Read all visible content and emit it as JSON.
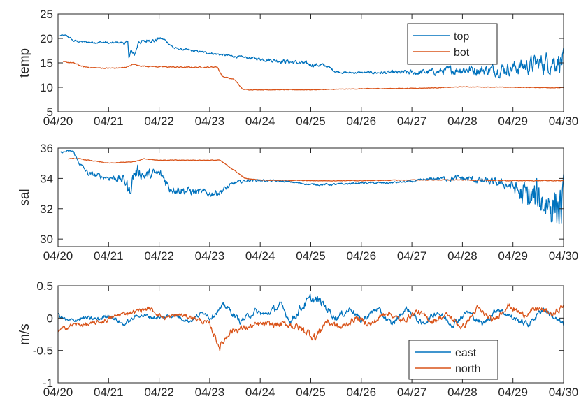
{
  "chart_data": [
    {
      "type": "line",
      "ylabel": "temp",
      "ylim": [
        5,
        25
      ],
      "yticks": [
        5,
        10,
        15,
        20,
        25
      ],
      "xlim": [
        "04/20",
        "04/30"
      ],
      "xticks": [
        "04/20",
        "04/21",
        "04/22",
        "04/23",
        "04/24",
        "04/25",
        "04/26",
        "04/27",
        "04/28",
        "04/29",
        "04/30"
      ],
      "legend_position": "top-right",
      "series": [
        {
          "name": "top",
          "color": "#0072BD",
          "x": [
            "04/20",
            "04/20",
            "04/21",
            "04/21",
            "04/22",
            "04/22",
            "04/23",
            "04/23",
            "04/24",
            "04/24",
            "04/25",
            "04/25",
            "04/26",
            "04/26",
            "04/27",
            "04/27",
            "04/28",
            "04/28",
            "04/29",
            "04/29",
            "04/30"
          ],
          "y": [
            20.6,
            20.3,
            19.2,
            19.3,
            19.5,
            17.8,
            17.0,
            16.4,
            16.0,
            15.3,
            14.5,
            13.2,
            13.0,
            13.0,
            13.2,
            13.8,
            13.5,
            14.0,
            14.5,
            15.5,
            15.5
          ],
          "x_detail": [
            0.04,
            0.17,
            0.25,
            0.3,
            0.5,
            0.75,
            0.95,
            1.0,
            1.2,
            1.38,
            1.4,
            1.44,
            1.5,
            1.55,
            1.6,
            1.7,
            1.8,
            1.9,
            2.0,
            2.1,
            2.3,
            2.5,
            3.0,
            3.5,
            3.7,
            4.0,
            4.5,
            5.0,
            5.3,
            5.5,
            5.7,
            6.0,
            6.5,
            7.0,
            7.5,
            8.0,
            8.5,
            9.0,
            9.5,
            9.8,
            10.0
          ],
          "y_detail": [
            20.6,
            20.5,
            20.0,
            19.5,
            19.3,
            19.2,
            19.2,
            19.0,
            19.2,
            19.0,
            16.5,
            17.5,
            16.3,
            17.8,
            19.5,
            19.2,
            19.8,
            19.5,
            20.0,
            19.8,
            18.0,
            17.7,
            17.0,
            16.3,
            16.1,
            15.8,
            15.3,
            14.7,
            14.4,
            13.2,
            13.0,
            13.0,
            13.0,
            13.0,
            13.2,
            13.7,
            13.5,
            14.0,
            14.8,
            15.5,
            15.5
          ],
          "noise": [
            0.2,
            0.2,
            0.2,
            0.2,
            0.2,
            0.2,
            0.2,
            0.2,
            0.2,
            0.4,
            0.6,
            0.6,
            0.6,
            0.6,
            0.5,
            0.4,
            0.4,
            0.4,
            0.3,
            0.2,
            0.2,
            0.2,
            0.2,
            0.2,
            0.2,
            0.3,
            0.4,
            0.4,
            0.3,
            0.2,
            0.2,
            0.2,
            0.3,
            0.5,
            0.6,
            0.9,
            1.0,
            1.3,
            1.8,
            2.2,
            2.0
          ]
        },
        {
          "name": "bot",
          "color": "#D95319",
          "x_detail": [
            0.1,
            0.3,
            0.5,
            0.7,
            1.0,
            1.3,
            1.5,
            1.6,
            2.0,
            2.5,
            3.0,
            3.15,
            3.25,
            3.35,
            3.5,
            3.65,
            3.8,
            4.0,
            5.0,
            6.0,
            7.0,
            7.5,
            8.0,
            9.0,
            10.0
          ],
          "y_detail": [
            15.2,
            15.0,
            14.2,
            14.0,
            13.9,
            14.0,
            14.7,
            14.4,
            14.2,
            14.1,
            14.1,
            14.2,
            12.2,
            12.0,
            11.5,
            9.6,
            9.5,
            9.5,
            9.5,
            9.7,
            9.8,
            9.9,
            10.1,
            10.0,
            9.9
          ],
          "noise": [
            0.1,
            0.1,
            0.1,
            0.1,
            0.1,
            0.1,
            0.1,
            0.1,
            0.1,
            0.1,
            0.1,
            0.1,
            0.1,
            0.1,
            0.1,
            0.05,
            0.05,
            0.05,
            0.05,
            0.05,
            0.05,
            0.05,
            0.05,
            0.05,
            0.05
          ]
        }
      ]
    },
    {
      "type": "line",
      "ylabel": "sal",
      "ylim": [
        29.5,
        36
      ],
      "yticks": [
        30,
        32,
        34,
        36
      ],
      "xlim": [
        "04/20",
        "04/30"
      ],
      "xticks": [
        "04/20",
        "04/21",
        "04/22",
        "04/23",
        "04/24",
        "04/25",
        "04/26",
        "04/27",
        "04/28",
        "04/29",
        "04/30"
      ],
      "series": [
        {
          "name": "top",
          "color": "#0072BD",
          "x_detail": [
            0.05,
            0.2,
            0.3,
            0.4,
            0.6,
            0.9,
            1.2,
            1.35,
            1.4,
            1.5,
            1.6,
            1.7,
            2.0,
            2.1,
            2.2,
            2.5,
            3.0,
            3.2,
            3.5,
            3.8,
            4.5,
            5.0,
            5.5,
            6.0,
            6.5,
            7.0,
            7.5,
            8.0,
            8.5,
            9.0,
            9.2,
            9.5,
            9.8,
            10.0
          ],
          "y_detail": [
            35.7,
            35.8,
            35.8,
            35.1,
            34.3,
            34.1,
            34.0,
            33.8,
            33.0,
            34.3,
            34.5,
            34.2,
            34.3,
            34.0,
            33.4,
            33.2,
            33.0,
            33.1,
            33.7,
            33.9,
            33.8,
            33.6,
            33.6,
            33.7,
            33.7,
            33.8,
            34.0,
            34.0,
            33.8,
            33.5,
            32.8,
            32.6,
            32.3,
            32.0
          ],
          "noise": [
            0.05,
            0.05,
            0.05,
            0.1,
            0.15,
            0.15,
            0.2,
            0.4,
            0.5,
            0.4,
            0.4,
            0.3,
            0.3,
            0.3,
            0.3,
            0.25,
            0.2,
            0.2,
            0.1,
            0.08,
            0.05,
            0.06,
            0.06,
            0.05,
            0.05,
            0.06,
            0.1,
            0.2,
            0.2,
            0.3,
            0.9,
            1.1,
            1.3,
            1.5
          ]
        },
        {
          "name": "bot",
          "color": "#D95319",
          "x_detail": [
            0.2,
            0.4,
            0.8,
            1.0,
            1.5,
            1.7,
            2.0,
            3.0,
            3.2,
            3.5,
            3.7,
            4.0,
            5.0,
            6.0,
            7.0,
            8.0,
            9.0,
            10.0
          ],
          "y_detail": [
            35.3,
            35.3,
            35.1,
            35.0,
            35.1,
            35.3,
            35.2,
            35.2,
            35.2,
            34.5,
            34.0,
            33.9,
            33.85,
            33.85,
            33.9,
            33.9,
            33.85,
            33.85
          ],
          "noise": [
            0.02,
            0.02,
            0.02,
            0.02,
            0.02,
            0.02,
            0.02,
            0.02,
            0.02,
            0.02,
            0.02,
            0.02,
            0.02,
            0.02,
            0.02,
            0.02,
            0.02,
            0.02
          ]
        }
      ]
    },
    {
      "type": "line",
      "ylabel": "m/s",
      "ylim": [
        -1,
        0.5
      ],
      "yticks": [
        -1,
        -0.5,
        0,
        0.5
      ],
      "xlim": [
        "04/20",
        "04/30"
      ],
      "xticks": [
        "04/20",
        "04/21",
        "04/22",
        "04/23",
        "04/24",
        "04/25",
        "04/26",
        "04/27",
        "04/28",
        "04/29",
        "04/30"
      ],
      "legend_position": "bottom-right",
      "series": [
        {
          "name": "east",
          "color": "#0072BD",
          "x_detail": [
            0.0,
            0.2,
            0.5,
            0.8,
            1.0,
            1.3,
            1.6,
            2.0,
            2.3,
            2.6,
            2.9,
            3.0,
            3.3,
            3.6,
            3.9,
            4.1,
            4.4,
            4.6,
            4.8,
            5.0,
            5.2,
            5.5,
            5.8,
            6.0,
            6.3,
            6.6,
            6.9,
            7.2,
            7.5,
            7.8,
            8.1,
            8.4,
            8.7,
            9.0,
            9.3,
            9.6,
            9.9,
            10.0
          ],
          "y_detail": [
            0.05,
            -0.05,
            0.0,
            -0.02,
            0.05,
            -0.1,
            0.05,
            0.0,
            0.05,
            -0.05,
            0.1,
            0.0,
            0.2,
            -0.05,
            0.1,
            0.05,
            0.2,
            -0.05,
            0.15,
            0.3,
            0.25,
            0.0,
            0.15,
            -0.05,
            0.15,
            -0.1,
            0.15,
            -0.1,
            0.1,
            -0.1,
            0.1,
            -0.1,
            0.15,
            0.0,
            -0.1,
            0.15,
            -0.05,
            -0.1
          ],
          "noise": [
            0.03,
            0.03,
            0.03,
            0.03,
            0.03,
            0.03,
            0.03,
            0.03,
            0.03,
            0.03,
            0.03,
            0.03,
            0.04,
            0.04,
            0.04,
            0.04,
            0.05,
            0.05,
            0.06,
            0.06,
            0.06,
            0.05,
            0.04,
            0.04,
            0.04,
            0.04,
            0.04,
            0.04,
            0.04,
            0.04,
            0.04,
            0.04,
            0.04,
            0.04,
            0.04,
            0.04,
            0.04,
            0.04
          ]
        },
        {
          "name": "north",
          "color": "#D95319",
          "x_detail": [
            0.0,
            0.3,
            0.6,
            0.9,
            1.2,
            1.5,
            1.8,
            2.1,
            2.4,
            2.7,
            3.0,
            3.2,
            3.4,
            3.7,
            4.0,
            4.3,
            4.6,
            4.9,
            5.1,
            5.3,
            5.6,
            5.9,
            6.2,
            6.5,
            6.8,
            7.1,
            7.4,
            7.7,
            8.0,
            8.3,
            8.6,
            8.9,
            9.2,
            9.5,
            9.8,
            10.0
          ],
          "y_detail": [
            -0.2,
            -0.1,
            -0.1,
            -0.05,
            0.05,
            0.1,
            0.15,
            0.0,
            0.05,
            0.0,
            -0.1,
            -0.45,
            -0.2,
            -0.15,
            -0.1,
            -0.1,
            -0.1,
            -0.2,
            -0.3,
            -0.05,
            -0.15,
            0.0,
            -0.1,
            0.1,
            -0.05,
            0.1,
            -0.05,
            0.05,
            -0.15,
            0.15,
            -0.05,
            0.2,
            0.05,
            0.15,
            0.05,
            0.2
          ],
          "noise": [
            0.03,
            0.03,
            0.03,
            0.03,
            0.03,
            0.03,
            0.03,
            0.03,
            0.03,
            0.03,
            0.04,
            0.05,
            0.05,
            0.04,
            0.04,
            0.04,
            0.05,
            0.06,
            0.06,
            0.05,
            0.04,
            0.04,
            0.04,
            0.04,
            0.04,
            0.04,
            0.04,
            0.04,
            0.04,
            0.04,
            0.04,
            0.04,
            0.04,
            0.04,
            0.04,
            0.04
          ]
        }
      ]
    }
  ]
}
